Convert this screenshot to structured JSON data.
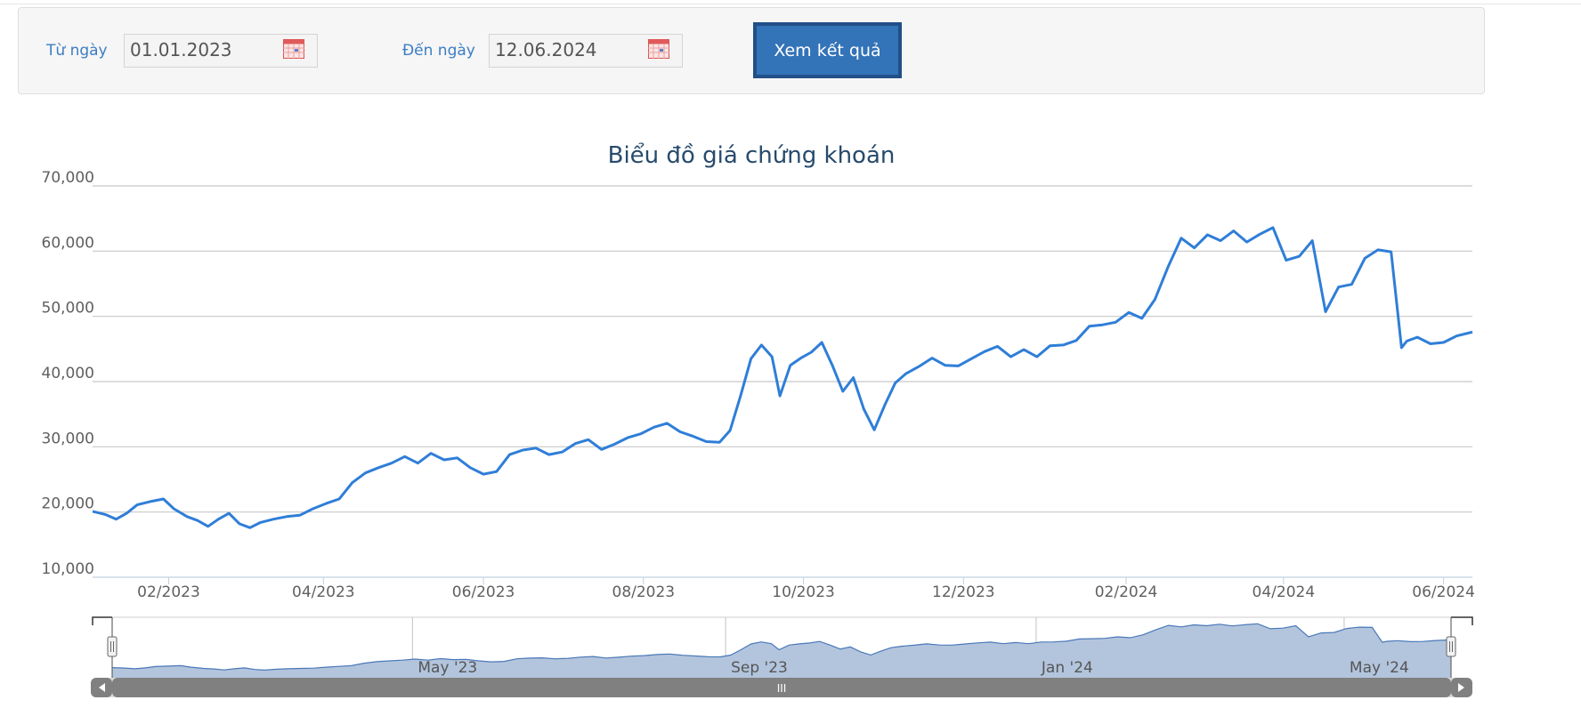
{
  "filter": {
    "from_label": "Từ ngày",
    "from_value": "01.01.2023",
    "to_label": "Đến ngày",
    "to_value": "12.06.2024",
    "submit_label": "Xem kết quả"
  },
  "colors": {
    "line": "#2f7ed8",
    "navigator_fill": "#b3c5dd",
    "title": "#274b6d",
    "accent": "#3373b8"
  },
  "icons": {
    "calendar": "calendar-icon"
  },
  "chart_data": {
    "type": "line",
    "title": "Biểu đồ giá chứng khoán",
    "xlabel": "",
    "ylabel": "",
    "ylim": [
      10000,
      70000
    ],
    "y_ticks": [
      "10,000",
      "20,000",
      "30,000",
      "40,000",
      "50,000",
      "60,000",
      "70,000"
    ],
    "x_range": [
      "2023-01-03",
      "2024-06-12"
    ],
    "x_ticks": [
      {
        "date": "2023-02-01",
        "label": "02/2023"
      },
      {
        "date": "2023-04-01",
        "label": "04/2023"
      },
      {
        "date": "2023-06-01",
        "label": "06/2023"
      },
      {
        "date": "2023-08-01",
        "label": "08/2023"
      },
      {
        "date": "2023-10-01",
        "label": "10/2023"
      },
      {
        "date": "2023-12-01",
        "label": "12/2023"
      },
      {
        "date": "2024-02-01",
        "label": "02/2024"
      },
      {
        "date": "2024-04-01",
        "label": "04/2024"
      },
      {
        "date": "2024-06-01",
        "label": "06/2024"
      }
    ],
    "grid": true,
    "series": [
      {
        "x": [
          "2023-01-03",
          "2023-01-08",
          "2023-01-12",
          "2023-01-16",
          "2023-01-20",
          "2023-01-25",
          "2023-01-30",
          "2023-02-03",
          "2023-02-08",
          "2023-02-12",
          "2023-02-16",
          "2023-02-20",
          "2023-02-24",
          "2023-02-28",
          "2023-03-04",
          "2023-03-08",
          "2023-03-13",
          "2023-03-18",
          "2023-03-23",
          "2023-03-28",
          "2023-04-02",
          "2023-04-07",
          "2023-04-12",
          "2023-04-17",
          "2023-04-22",
          "2023-04-27",
          "2023-05-02",
          "2023-05-07",
          "2023-05-12",
          "2023-05-17",
          "2023-05-22",
          "2023-05-27",
          "2023-06-01",
          "2023-06-06",
          "2023-06-11",
          "2023-06-16",
          "2023-06-21",
          "2023-06-26",
          "2023-07-01",
          "2023-07-06",
          "2023-07-11",
          "2023-07-16",
          "2023-07-21",
          "2023-07-26",
          "2023-07-31",
          "2023-08-05",
          "2023-08-10",
          "2023-08-15",
          "2023-08-20",
          "2023-08-25",
          "2023-08-30",
          "2023-09-03",
          "2023-09-07",
          "2023-09-11",
          "2023-09-15",
          "2023-09-19",
          "2023-09-22",
          "2023-09-26",
          "2023-09-30",
          "2023-10-04",
          "2023-10-08",
          "2023-10-12",
          "2023-10-16",
          "2023-10-20",
          "2023-10-24",
          "2023-10-28",
          "2023-11-01",
          "2023-11-05",
          "2023-11-09",
          "2023-11-14",
          "2023-11-19",
          "2023-11-24",
          "2023-11-29",
          "2023-12-04",
          "2023-12-09",
          "2023-12-14",
          "2023-12-19",
          "2023-12-24",
          "2023-12-29",
          "2024-01-03",
          "2024-01-08",
          "2024-01-13",
          "2024-01-18",
          "2024-01-23",
          "2024-01-28",
          "2024-02-02",
          "2024-02-07",
          "2024-02-12",
          "2024-02-17",
          "2024-02-22",
          "2024-02-27",
          "2024-03-03",
          "2024-03-08",
          "2024-03-13",
          "2024-03-18",
          "2024-03-23",
          "2024-03-28",
          "2024-04-02",
          "2024-04-07",
          "2024-04-12",
          "2024-04-17",
          "2024-04-22",
          "2024-04-27",
          "2024-05-02",
          "2024-05-07",
          "2024-05-12",
          "2024-05-16",
          "2024-05-18",
          "2024-05-22",
          "2024-05-27",
          "2024-06-01",
          "2024-06-06",
          "2024-06-12"
        ],
        "values": [
          20100,
          19600,
          18900,
          19800,
          21100,
          21600,
          22000,
          20500,
          19300,
          18700,
          17800,
          18900,
          19800,
          18200,
          17600,
          18400,
          18900,
          19300,
          19500,
          20500,
          21300,
          22000,
          24500,
          26000,
          26800,
          27500,
          28500,
          27500,
          29000,
          28000,
          28300,
          26800,
          25800,
          26200,
          28800,
          29500,
          29800,
          28800,
          29200,
          30500,
          31100,
          29600,
          30400,
          31400,
          32000,
          33000,
          33600,
          32300,
          31600,
          30800,
          30700,
          32500,
          37800,
          43500,
          45600,
          43800,
          37800,
          42500,
          43600,
          44500,
          46000,
          42500,
          38500,
          40600,
          35800,
          32600,
          36400,
          39800,
          41200,
          42300,
          43600,
          42500,
          42400,
          43500,
          44600,
          45400,
          43800,
          44900,
          43800,
          45500,
          45600,
          46300,
          48500,
          48700,
          49100,
          50600,
          49700,
          52600,
          57600,
          62000,
          60500,
          62500,
          61600,
          63100,
          61400,
          62600,
          63600,
          58600,
          59200,
          61600,
          50700,
          54500,
          54900,
          58900,
          60200,
          59900,
          45200,
          46200,
          46800,
          45800,
          46000,
          47000,
          47600
        ]
      }
    ],
    "navigator": {
      "labels": [
        "May '23",
        "Sep '23",
        "Jan '24",
        "May '24"
      ]
    }
  }
}
